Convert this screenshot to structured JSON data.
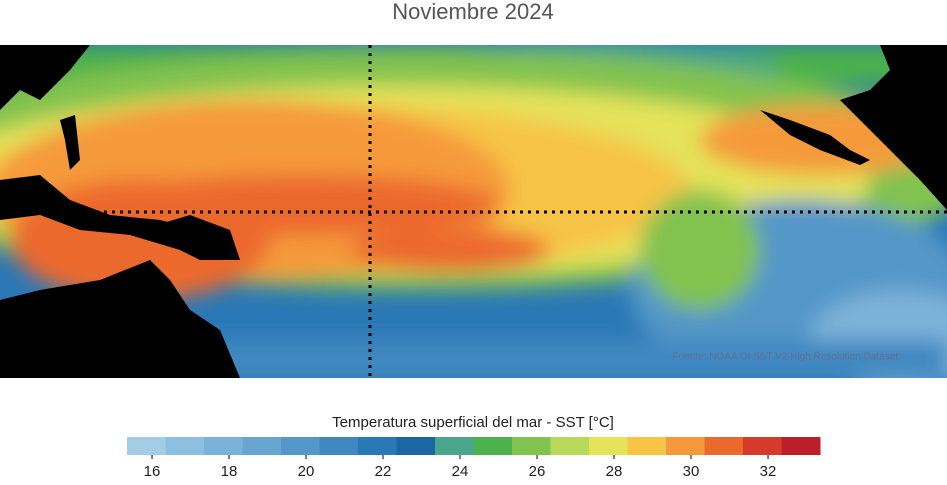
{
  "title": "Noviembre 2024",
  "source": "Fuente: NOAA OI SST V2 High Resolution Dataset",
  "colorbar": {
    "label": "Temperatura superficial del mar - SST  [°C]",
    "lim": [
      15.35,
      33.35
    ],
    "ticks": [
      16,
      18,
      20,
      22,
      24,
      26,
      28,
      30,
      32
    ],
    "colors": [
      "#a3cde6",
      "#8dbfe0",
      "#7bb2d9",
      "#69a5d1",
      "#5597c8",
      "#3f88c0",
      "#2a78b6",
      "#1d66a6",
      "#4aa58a",
      "#4cb04c",
      "#82c24f",
      "#b8d95a",
      "#e4e35a",
      "#f7c446",
      "#f59a3a",
      "#ec692d",
      "#d63a2b",
      "#bd1f2a"
    ]
  }
}
